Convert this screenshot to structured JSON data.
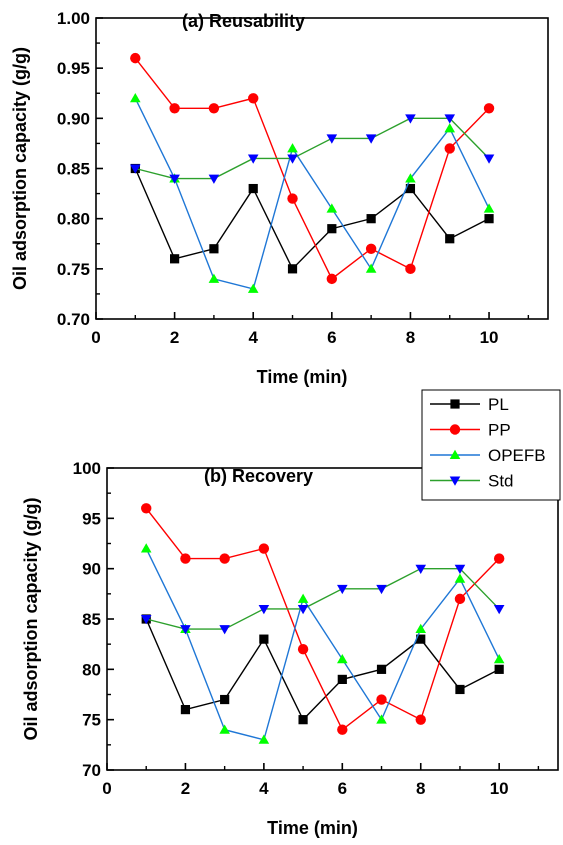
{
  "chart_data": [
    {
      "type": "line",
      "title": "(a) Reusability",
      "xlabel": "Time (min)",
      "ylabel": "Oil adsorption capacity (g/g)",
      "xlim": [
        0,
        11.5
      ],
      "ylim": [
        0.7,
        1.0
      ],
      "xticks": [
        "0",
        "2",
        "4",
        "6",
        "8",
        "10"
      ],
      "yticks": [
        "0.70",
        "0.75",
        "0.80",
        "0.85",
        "0.90",
        "0.95",
        "1.00"
      ],
      "x": [
        1,
        2,
        3,
        4,
        5,
        6,
        7,
        8,
        9,
        10
      ],
      "series": [
        {
          "name": "PL",
          "color": "#000000",
          "marker": "square",
          "values": [
            0.85,
            0.76,
            0.77,
            0.83,
            0.75,
            0.79,
            0.8,
            0.83,
            0.78,
            0.8
          ]
        },
        {
          "name": "PP",
          "color": "#ff0000",
          "marker": "circle",
          "values": [
            0.96,
            0.91,
            0.91,
            0.92,
            0.82,
            0.74,
            0.77,
            0.75,
            0.87,
            0.91
          ]
        },
        {
          "name": "OPEFB",
          "color": "#00ff00",
          "line_color": "#1f77d6",
          "marker": "triangle-up",
          "values": [
            0.92,
            0.84,
            0.74,
            0.73,
            0.87,
            0.81,
            0.75,
            0.84,
            0.89,
            0.81
          ]
        },
        {
          "name": "Std",
          "color": "#0000ff",
          "line_color": "#2ca02c",
          "marker": "triangle-down",
          "values": [
            0.85,
            0.84,
            0.84,
            0.86,
            0.86,
            0.88,
            0.88,
            0.9,
            0.9,
            0.86
          ]
        }
      ]
    },
    {
      "type": "line",
      "title": "(b) Recovery",
      "xlabel": "Time (min)",
      "ylabel": "Oil adsorption capacity (g/g)",
      "xlim": [
        0,
        11.5
      ],
      "ylim": [
        70,
        100
      ],
      "xticks": [
        "0",
        "2",
        "4",
        "6",
        "8",
        "10"
      ],
      "yticks": [
        "70",
        "75",
        "80",
        "85",
        "90",
        "95",
        "100"
      ],
      "x": [
        1,
        2,
        3,
        4,
        5,
        6,
        7,
        8,
        9,
        10
      ],
      "series": [
        {
          "name": "PL",
          "color": "#000000",
          "marker": "square",
          "values": [
            85,
            76,
            77,
            83,
            75,
            79,
            80,
            83,
            78,
            80
          ]
        },
        {
          "name": "PP",
          "color": "#ff0000",
          "marker": "circle",
          "values": [
            96,
            91,
            91,
            92,
            82,
            74,
            77,
            75,
            87,
            91
          ]
        },
        {
          "name": "OPEFB",
          "color": "#00ff00",
          "line_color": "#1f77d6",
          "marker": "triangle-up",
          "values": [
            92,
            84,
            74,
            73,
            87,
            81,
            75,
            84,
            89,
            81
          ]
        },
        {
          "name": "Std",
          "color": "#0000ff",
          "line_color": "#2ca02c",
          "marker": "triangle-down",
          "values": [
            85,
            84,
            84,
            86,
            86,
            88,
            88,
            90,
            90,
            86
          ]
        }
      ]
    }
  ],
  "legend": {
    "placement": "between-panels-right",
    "items": [
      {
        "label": "PL",
        "line_color": "#000000",
        "marker": "square",
        "marker_color": "#000000"
      },
      {
        "label": "PP",
        "line_color": "#ff0000",
        "marker": "circle",
        "marker_color": "#ff0000"
      },
      {
        "label": "OPEFB",
        "line_color": "#1f77d6",
        "marker": "triangle-up",
        "marker_color": "#00ff00"
      },
      {
        "label": "Std",
        "line_color": "#2ca02c",
        "marker": "triangle-down",
        "marker_color": "#0000ff"
      }
    ]
  }
}
